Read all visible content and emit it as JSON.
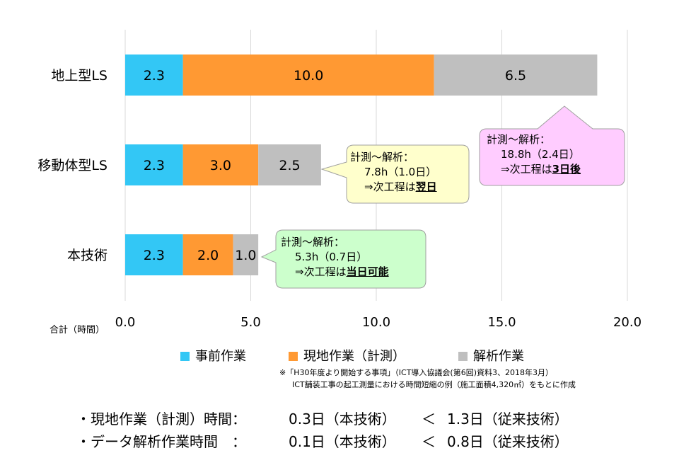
{
  "chart_data": {
    "type": "bar",
    "orientation": "horizontal",
    "stacked": true,
    "categories": [
      "地上型LS",
      "移動体型LS",
      "本技術"
    ],
    "series": [
      {
        "name": "事前作業",
        "color": "#33c7f5",
        "values": [
          2.3,
          2.3,
          2.3
        ]
      },
      {
        "name": "現地作業（計測）",
        "color": "#ff9933",
        "values": [
          10.0,
          3.0,
          2.0
        ]
      },
      {
        "name": "解析作業",
        "color": "#bfbfbf",
        "values": [
          6.5,
          2.5,
          1.0
        ]
      }
    ],
    "data_labels": [
      [
        "2.3",
        "10.0",
        "6.5"
      ],
      [
        "2.3",
        "3.0",
        "2.5"
      ],
      [
        "2.3",
        "2.0",
        "1.0"
      ]
    ],
    "xlim": [
      0,
      20
    ],
    "xticks": [
      "0.0",
      "5.0",
      "10.0",
      "15.0",
      "20.0"
    ],
    "xlabel": "合計（時間）",
    "grid": "vertical",
    "legend_position": "bottom"
  },
  "callouts": [
    {
      "line1": "計測～解析：",
      "line2": "18.8h（2.4日）",
      "line3_prefix": "⇒次工程は",
      "line3_bold": "3日後",
      "fill": "#ffccff"
    },
    {
      "line1": "計測～解析：",
      "line2": "7.8h（1.0日）",
      "line3_prefix": "⇒次工程は",
      "line3_bold": "翌日",
      "fill": "#ffffcc"
    },
    {
      "line1": "計測～解析：",
      "line2": "5.3h（0.7日）",
      "line3_prefix": "⇒次工程は",
      "line3_bold": "当日可能",
      "fill": "#ccffcc"
    }
  ],
  "source_note": {
    "line1": "※「H30年度より開始する事項」（ICT導入協議会(第6回)資料3、2018年3月）",
    "line2": "ICT舗装工事の起工測量における時間短縮の例（施工面積4,320㎡）をもとに作成"
  },
  "summary": [
    {
      "label": "・現地作業（計測）時間：",
      "left": "0.3日（本技術）",
      "op": "＜",
      "right": "1.3日（従来技術）"
    },
    {
      "label": "・データ解析作業時間　：",
      "left": "0.1日（本技術）",
      "op": "＜",
      "right": "0.8日（従来技術）"
    }
  ]
}
